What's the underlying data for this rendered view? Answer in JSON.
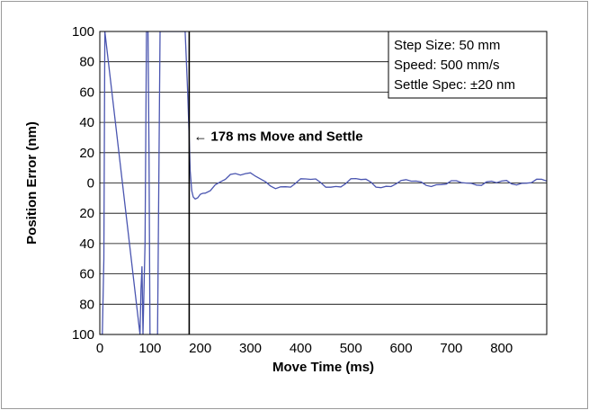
{
  "chart_data": {
    "type": "line",
    "xlabel": "Move Time (ms)",
    "ylabel": "Position Error (nm)",
    "xlim": [
      0,
      890
    ],
    "ylim": [
      -100,
      100
    ],
    "x_ticks": [
      0,
      100,
      200,
      300,
      400,
      500,
      600,
      700,
      800
    ],
    "x_tick_labels": [
      "0",
      "100",
      "200",
      "300",
      "400",
      "500",
      "600",
      "700",
      "800"
    ],
    "y_ticks": [
      100,
      80,
      60,
      40,
      20,
      0,
      -20,
      -40,
      -60,
      -80,
      -100
    ],
    "y_tick_labels": [
      "100",
      "80",
      "60",
      "40",
      "20",
      "0",
      "20",
      "40",
      "60",
      "80",
      "100"
    ],
    "grid": "horizontal",
    "legend_position": "top-right",
    "legend_lines": [
      "Step Size: 50 mm",
      "Speed: 500 mm/s",
      "Settle Spec: ±20 nm"
    ],
    "annotation": {
      "text": "178 ms Move and Settle",
      "arrow": "←",
      "x": 178
    },
    "settle_line_x": 178,
    "colors": {
      "trace": "#4a55b0",
      "marker": "#000000",
      "grid": "#000000",
      "frame": "#9a9a9a"
    },
    "series": [
      {
        "x": [
          0,
          5,
          8,
          10,
          80,
          82,
          84,
          86,
          86,
          90,
          93,
          96,
          98,
          100,
          115,
          120,
          122,
          170,
          175,
          178,
          180,
          183,
          186,
          190,
          195,
          200,
          205,
          210,
          220,
          230,
          240,
          250,
          260,
          270,
          280,
          290,
          300,
          310,
          320,
          330,
          340,
          350,
          360,
          370,
          380,
          390,
          400,
          410,
          420,
          430,
          440,
          450,
          460,
          470,
          480,
          490,
          500,
          510,
          520,
          530,
          540,
          550,
          560,
          570,
          580,
          590,
          600,
          610,
          620,
          630,
          640,
          650,
          660,
          670,
          680,
          690,
          700,
          710,
          720,
          730,
          740,
          750,
          760,
          770,
          780,
          790,
          800,
          810,
          820,
          830,
          840,
          850,
          860,
          870,
          880,
          890
        ],
        "y": [
          -100,
          -100,
          -50,
          100,
          -100,
          -70,
          -55,
          -100,
          -100,
          -40,
          100,
          100,
          20,
          -100,
          -100,
          100,
          100,
          100,
          60,
          30,
          8,
          -5,
          -10,
          -11,
          -9,
          -8,
          -7,
          -6,
          -5,
          -2,
          1,
          3,
          5,
          6,
          6,
          6,
          6,
          5,
          3,
          0,
          -2,
          -3,
          -3,
          -3,
          -2,
          0,
          2,
          3,
          3,
          2,
          0,
          -2,
          -3,
          -3,
          -2,
          0,
          2,
          3,
          3,
          2,
          0,
          -2,
          -3,
          -3,
          -2,
          0,
          1,
          2,
          2,
          1,
          0,
          -1,
          -2,
          -2,
          -1,
          0,
          1,
          1,
          1,
          0,
          -1,
          -1,
          -1,
          0,
          1,
          1,
          1,
          1,
          0,
          -1,
          -1,
          0,
          1,
          2,
          2,
          2
        ]
      }
    ]
  }
}
